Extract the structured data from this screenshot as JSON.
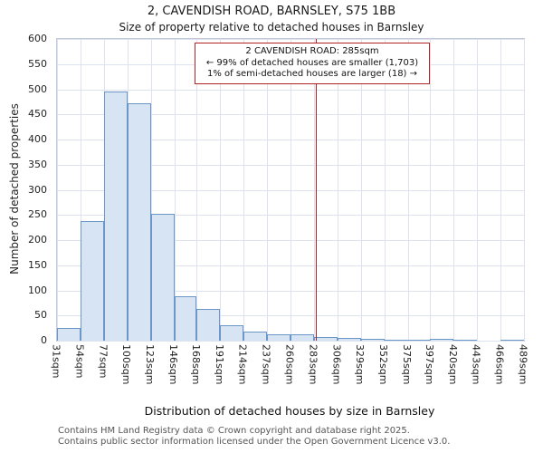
{
  "title": "2, CAVENDISH ROAD, BARNSLEY, S75 1BB",
  "subtitle": "Size of property relative to detached houses in Barnsley",
  "annotation": {
    "line1": "2 CAVENDISH ROAD: 285sqm",
    "line2": "← 99% of detached houses are smaller (1,703)",
    "line3": "1% of semi-detached houses are larger (18) →"
  },
  "footer": {
    "line1": "Contains HM Land Registry data © Crown copyright and database right 2025.",
    "line2": "Contains public sector information licensed under the Open Government Licence v3.0."
  },
  "chart_data": {
    "type": "bar",
    "title": "2, CAVENDISH ROAD, BARNSLEY, S75 1BB — Size of property relative to detached houses in Barnsley",
    "xlabel": "Distribution of detached houses by size in Barnsley",
    "ylabel": "Number of detached properties",
    "x_tick_labels": [
      "31sqm",
      "54sqm",
      "77sqm",
      "100sqm",
      "123sqm",
      "146sqm",
      "168sqm",
      "191sqm",
      "214sqm",
      "237sqm",
      "260sqm",
      "283sqm",
      "306sqm",
      "329sqm",
      "352sqm",
      "375sqm",
      "397sqm",
      "420sqm",
      "443sqm",
      "466sqm",
      "489sqm"
    ],
    "bin_edges_sqm": [
      31,
      54,
      77,
      100,
      123,
      146,
      168,
      191,
      214,
      237,
      260,
      283,
      306,
      329,
      352,
      375,
      397,
      420,
      443,
      466,
      489
    ],
    "values": [
      25,
      238,
      495,
      472,
      252,
      88,
      63,
      30,
      18,
      12,
      12,
      8,
      5,
      3,
      2,
      2,
      3,
      1,
      0,
      2
    ],
    "ylim": [
      0,
      600
    ],
    "y_ticks": [
      0,
      50,
      100,
      150,
      200,
      250,
      300,
      350,
      400,
      450,
      500,
      550,
      600
    ],
    "marker_value_sqm": 285,
    "grid": "on",
    "legend": "none",
    "colors": {
      "bar_fill": "#d7e4f4",
      "bar_border": "#6b96c8",
      "marker_line": "#b22222",
      "annotation_border": "#b22222",
      "gridline": "#dde2ee"
    }
  }
}
